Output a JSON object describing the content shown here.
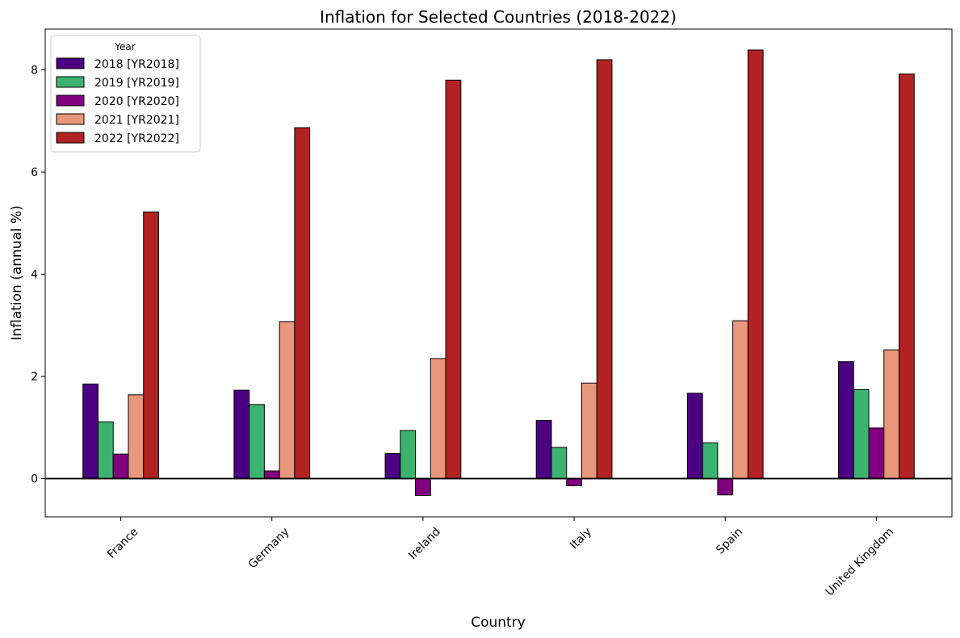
{
  "chart_data": {
    "type": "bar",
    "title": "Inflation for Selected Countries (2018-2022)",
    "xlabel": "Country",
    "ylabel": "Inflation (annual %)",
    "ylim": [
      -0.75,
      8.8
    ],
    "yticks": [
      "0",
      "2",
      "4",
      "6",
      "8"
    ],
    "grid": false,
    "zero_line": true,
    "legend": {
      "title": "Year",
      "placement": "top-left"
    },
    "categories": [
      "France",
      "Germany",
      "Ireland",
      "Italy",
      "Spain",
      "United Kingdom"
    ],
    "series": [
      {
        "name": "2018 [YR2018]",
        "color": "#4b0082",
        "values": [
          1.85,
          1.73,
          0.49,
          1.14,
          1.67,
          2.29
        ]
      },
      {
        "name": "2019 [YR2019]",
        "color": "#3cb371",
        "values": [
          1.11,
          1.45,
          0.94,
          0.61,
          0.7,
          1.74
        ]
      },
      {
        "name": "2020 [YR2020]",
        "color": "#800080",
        "values": [
          0.48,
          0.15,
          -0.33,
          -0.14,
          -0.32,
          0.99
        ]
      },
      {
        "name": "2021 [YR2021]",
        "color": "#e9967a",
        "values": [
          1.64,
          3.07,
          2.35,
          1.87,
          3.09,
          2.52
        ]
      },
      {
        "name": "2022 [YR2022]",
        "color": "#b22222",
        "values": [
          5.22,
          6.87,
          7.8,
          8.2,
          8.39,
          7.92
        ]
      }
    ]
  }
}
